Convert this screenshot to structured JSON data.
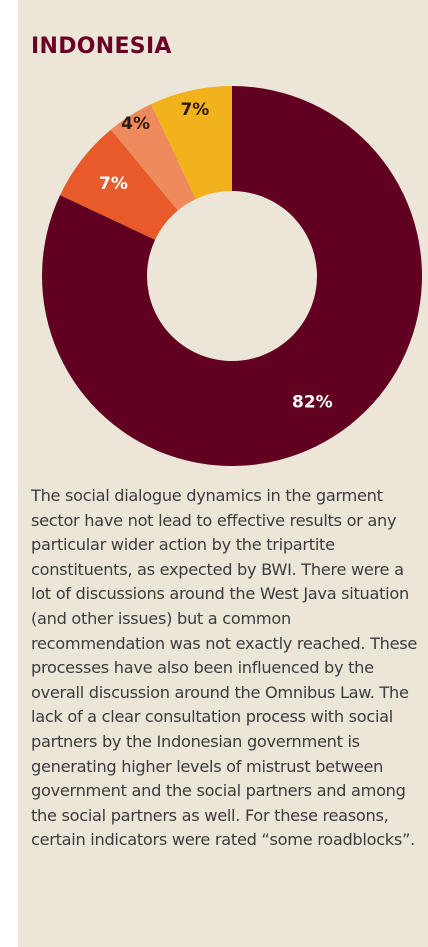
{
  "chart_data": {
    "type": "pie",
    "title": "INDONESIA",
    "slices": [
      {
        "label": "82%",
        "value": 82,
        "color": "#620022",
        "label_color": "#ffffff"
      },
      {
        "label": "7%",
        "value": 7,
        "color": "#e85a2a",
        "label_color": "#ffffff"
      },
      {
        "label": "4%",
        "value": 4,
        "color": "#ef8a5c",
        "label_color": "#2a1a10"
      },
      {
        "label": "7%",
        "value": 7,
        "color": "#f2b21b",
        "label_color": "#2a1a10"
      }
    ]
  },
  "body_text": "The social dialogue dynamics in the garment sector have not lead to effective results or any particular wider action by the tripartite constituents, as expected by BWI. There were a lot of discussions around the West Java situation (and other issues) but a common recommendation was not exactly reached. These processes have also been influenced by the overall discussion around the Omnibus Law. The lack of a clear consultation process with social partners by the Indonesian government is generating higher levels of mistrust between government and the social partners and among the social partners as well. For these reasons, certain indicators were rated “some roadblocks”."
}
